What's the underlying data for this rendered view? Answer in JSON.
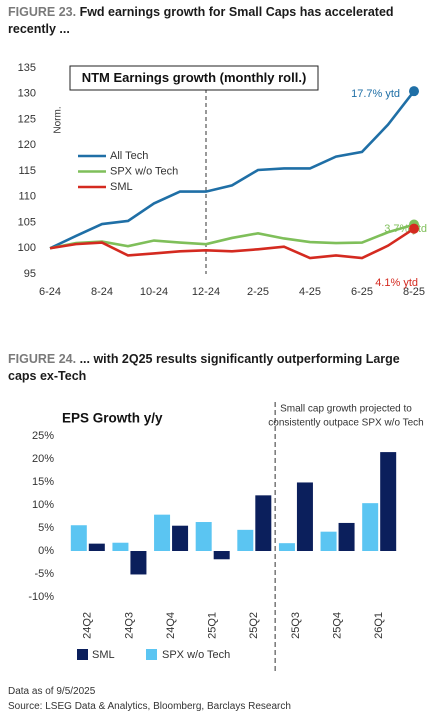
{
  "chart_data": [
    {
      "type": "line",
      "figure": "FIGURE 23.",
      "title": "Fwd earnings growth for Small Caps has accelerated recently ...",
      "plot_title": "NTM Earnings growth (monthly roll.)",
      "ylabel": "Norm.",
      "categories": [
        "6-24",
        null,
        "8-24",
        null,
        "10-24",
        null,
        "12-24",
        null,
        "2-25",
        null,
        "4-25",
        null,
        "6-25",
        null,
        "8-25"
      ],
      "series": [
        {
          "name": "All Tech",
          "color": "#1f6fa6",
          "values": [
            100,
            102.4,
            104.7,
            105.3,
            108.7,
            111,
            111,
            112.2,
            115.2,
            115.5,
            115.5,
            117.8,
            118.7,
            124,
            130.5
          ]
        },
        {
          "name": "SPX w/o Tech",
          "color": "#7fbf5a",
          "values": [
            100,
            101,
            101.3,
            100.4,
            101.5,
            101.1,
            100.8,
            102,
            102.9,
            101.9,
            101.2,
            101,
            101.1,
            103.1,
            104.6
          ]
        },
        {
          "name": "SML",
          "color": "#d42a20",
          "values": [
            100,
            100.8,
            101.1,
            98.6,
            99,
            99.4,
            99.6,
            99.4,
            99.8,
            100.3,
            98.1,
            98.6,
            98.1,
            100.5,
            103.8
          ]
        }
      ],
      "annotations": [
        "17.7% ytd",
        "3.7% ytd",
        "4.1% ytd"
      ],
      "ylim": [
        95,
        135
      ],
      "yticks": [
        95,
        100,
        105,
        110,
        115,
        120,
        125,
        130,
        135
      ],
      "grid": false
    },
    {
      "type": "bar",
      "figure": "FIGURE 24.",
      "title": "... with 2Q25 results significantly outperforming Large caps ex-Tech",
      "plot_title": "EPS Growth y/y",
      "annotation": [
        "Small cap growth projected to",
        "consistently outpace SPX w/o Tech"
      ],
      "categories": [
        "24Q2",
        "24Q3",
        "24Q4",
        "25Q1",
        "25Q2",
        "25Q3",
        "25Q4",
        "26Q1"
      ],
      "series": [
        {
          "name": "SML",
          "color": "#0b1f5c",
          "values": [
            1.6,
            -5.1,
            5.5,
            -1.8,
            12.1,
            14.9,
            6.1,
            21.5
          ]
        },
        {
          "name": "SPX w/o Tech",
          "color": "#5bc5f2",
          "values": [
            5.6,
            1.8,
            7.9,
            6.3,
            4.6,
            1.7,
            4.2,
            10.4
          ]
        }
      ],
      "ylim": [
        -10,
        25
      ],
      "yticks": [
        {
          "value": -10,
          "label": "-10%"
        },
        {
          "value": -5,
          "label": "-5%"
        },
        {
          "value": 0,
          "label": "0%"
        },
        {
          "value": 5,
          "label": "5%"
        },
        {
          "value": 10,
          "label": "10%"
        },
        {
          "value": 15,
          "label": "15%"
        },
        {
          "value": 20,
          "label": "20%"
        },
        {
          "value": 25,
          "label": "25%"
        }
      ],
      "grid": false
    }
  ],
  "footer": {
    "date_note": "Data as of 9/5/2025",
    "source": "Source: LSEG Data & Analytics, Bloomberg, Barclays Research"
  }
}
